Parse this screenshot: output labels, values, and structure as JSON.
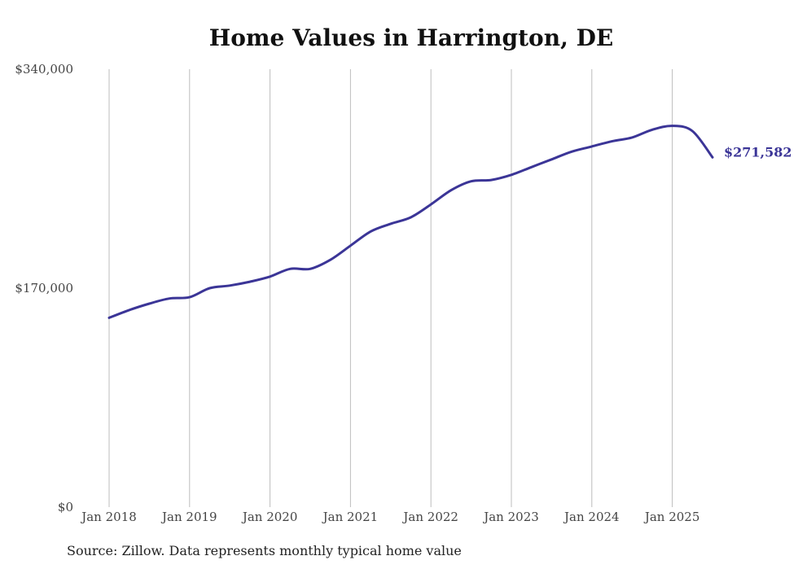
{
  "chart_data": {
    "type": "line",
    "title": "Home Values in Harrington, DE",
    "source": "Source: Zillow. Data represents monthly typical home value",
    "xlabel": "",
    "ylabel": "",
    "x_ticks": [
      "Jan 2018",
      "Jan 2019",
      "Jan 2020",
      "Jan 2021",
      "Jan 2022",
      "Jan 2023",
      "Jan 2024",
      "Jan 2025"
    ],
    "y_ticks": [
      "$0",
      "$170,000",
      "$340,000"
    ],
    "ylim": [
      0,
      340000
    ],
    "xlim": [
      "2018-01",
      "2025-07"
    ],
    "grid": "vertical",
    "line_color": "#3b3597",
    "end_label": "$271,582",
    "series": [
      {
        "x": [
          "2018-01",
          "2018-04",
          "2018-07",
          "2018-10",
          "2019-01",
          "2019-04",
          "2019-07",
          "2019-10",
          "2020-01",
          "2020-04",
          "2020-07",
          "2020-10",
          "2021-01",
          "2021-04",
          "2021-07",
          "2021-10",
          "2022-01",
          "2022-04",
          "2022-07",
          "2022-10",
          "2023-01",
          "2023-04",
          "2023-07",
          "2023-10",
          "2024-01",
          "2024-04",
          "2024-07",
          "2024-10",
          "2025-01",
          "2025-04",
          "2025-07"
        ],
        "values": [
          147000,
          153000,
          158000,
          162000,
          163000,
          170000,
          172000,
          175000,
          179000,
          185000,
          185000,
          192000,
          203000,
          214000,
          220000,
          225000,
          235000,
          246000,
          253000,
          254000,
          258000,
          264000,
          270000,
          276000,
          280000,
          284000,
          287000,
          293000,
          296000,
          292000,
          271582
        ]
      }
    ]
  }
}
